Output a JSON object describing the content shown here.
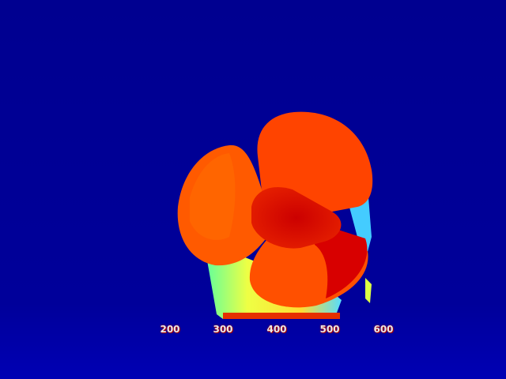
{
  "image": {
    "subject": "depth-map",
    "colormap": "jet",
    "colors": {
      "background": "#00008f",
      "near": "#c80000",
      "mid": "#ff5500",
      "far_edge": "#ffee33"
    }
  },
  "axis": {
    "ticks": [
      "200",
      "300",
      "400",
      "500",
      "600"
    ]
  }
}
